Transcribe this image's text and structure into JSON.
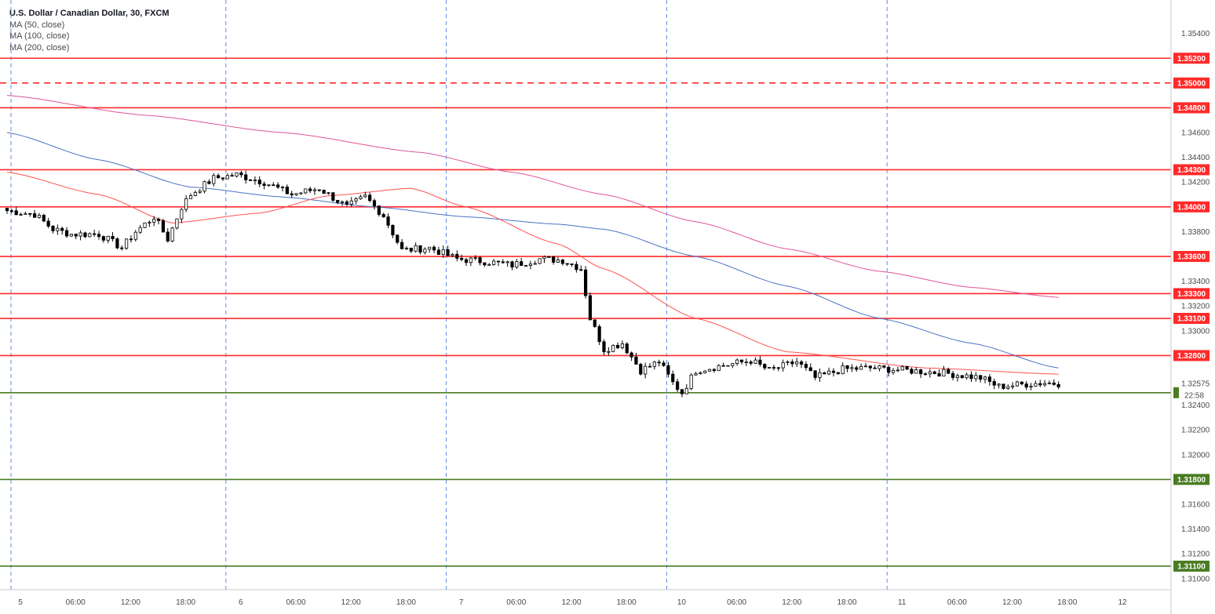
{
  "legend": {
    "title": "U.S. Dollar / Canadian Dollar, 30, FXCM",
    "ma50": "MA (50, close)",
    "ma100": "MA (100, close)",
    "ma200": "MA (200, close)"
  },
  "colors": {
    "resistance": "#ff2a2a",
    "support": "#4a7c23",
    "ma50": "#ff5252",
    "ma100": "#4a72c4",
    "ma200": "#e0559a",
    "session_line": "#5b8be0",
    "candle_up": "#ffffff",
    "candle_down": "#000000"
  },
  "chart_data": {
    "type": "candlestick",
    "symbol": "USDCAD",
    "timeframe": "30",
    "ylim": [
      1.3091,
      1.3567
    ],
    "y_ticks": [
      "1.35400",
      "1.34600",
      "1.34400",
      "1.34200",
      "1.33800",
      "1.33400",
      "1.33200",
      "1.33000",
      "1.32400",
      "1.32200",
      "1.32000",
      "1.31600",
      "1.31400",
      "1.31200",
      "1.31000"
    ],
    "x_ticks": [
      "5",
      "06:00",
      "12:00",
      "18:00",
      "6",
      "06:00",
      "12:00",
      "18:00",
      "7",
      "06:00",
      "12:00",
      "18:00",
      "10",
      "06:00",
      "12:00",
      "18:00",
      "11",
      "06:00",
      "12:00",
      "18:00",
      "12"
    ],
    "x_tick_bars": [
      0,
      12,
      24,
      36,
      48,
      60,
      72,
      84,
      96,
      108,
      120,
      132,
      144,
      156,
      168,
      180,
      192,
      204,
      216,
      228,
      240
    ],
    "session_breaks": [
      48,
      96,
      144,
      192
    ],
    "bar_count": 230,
    "resistance_levels": [
      {
        "value": 1.352,
        "label": "1.35200",
        "style": "solid"
      },
      {
        "value": 1.35,
        "label": "1.35000",
        "style": "dashed"
      },
      {
        "value": 1.348,
        "label": "1.34800",
        "style": "solid"
      },
      {
        "value": 1.343,
        "label": "1.34300",
        "style": "solid"
      },
      {
        "value": 1.34,
        "label": "1.34000",
        "style": "solid"
      },
      {
        "value": 1.336,
        "label": "1.33600",
        "style": "solid"
      },
      {
        "value": 1.333,
        "label": "1.33300",
        "style": "solid"
      },
      {
        "value": 1.331,
        "label": "1.33100",
        "style": "solid"
      },
      {
        "value": 1.328,
        "label": "1.32800",
        "style": "solid"
      }
    ],
    "support_levels": [
      {
        "value": 1.325,
        "label": "",
        "style": "solid"
      },
      {
        "value": 1.318,
        "label": "1.31800",
        "style": "solid"
      },
      {
        "value": 1.311,
        "label": "1.31100",
        "style": "solid"
      }
    ],
    "last_price": {
      "value": 1.32575,
      "label": "1.32575"
    },
    "countdown": "22:58",
    "close_anchors": [
      [
        0,
        1.3397
      ],
      [
        6,
        1.3394
      ],
      [
        10,
        1.3382
      ],
      [
        14,
        1.3378
      ],
      [
        20,
        1.3378
      ],
      [
        25,
        1.3367
      ],
      [
        28,
        1.338
      ],
      [
        32,
        1.3392
      ],
      [
        35,
        1.3374
      ],
      [
        38,
        1.34
      ],
      [
        40,
        1.341
      ],
      [
        45,
        1.3423
      ],
      [
        50,
        1.3426
      ],
      [
        56,
        1.342
      ],
      [
        62,
        1.341
      ],
      [
        68,
        1.3415
      ],
      [
        74,
        1.34
      ],
      [
        78,
        1.3408
      ],
      [
        82,
        1.3393
      ],
      [
        86,
        1.3365
      ],
      [
        92,
        1.3367
      ],
      [
        98,
        1.3358
      ],
      [
        104,
        1.3356
      ],
      [
        110,
        1.3353
      ],
      [
        116,
        1.3358
      ],
      [
        121,
        1.3357
      ],
      [
        124,
        1.3352
      ],
      [
        125,
        1.335
      ],
      [
        127,
        1.331
      ],
      [
        130,
        1.3285
      ],
      [
        134,
        1.329
      ],
      [
        138,
        1.3268
      ],
      [
        142,
        1.3275
      ],
      [
        145,
        1.3258
      ],
      [
        147,
        1.325
      ],
      [
        150,
        1.3268
      ],
      [
        156,
        1.3272
      ],
      [
        162,
        1.3276
      ],
      [
        166,
        1.3268
      ],
      [
        172,
        1.3275
      ],
      [
        176,
        1.3262
      ],
      [
        182,
        1.3269
      ],
      [
        188,
        1.327
      ],
      [
        196,
        1.3268
      ],
      [
        204,
        1.3266
      ],
      [
        212,
        1.3262
      ],
      [
        216,
        1.3255
      ],
      [
        222,
        1.3257
      ],
      [
        226,
        1.3258
      ],
      [
        229,
        1.32575
      ]
    ],
    "ma50_points": [
      [
        0,
        1.3428
      ],
      [
        20,
        1.341
      ],
      [
        36,
        1.3387
      ],
      [
        55,
        1.3395
      ],
      [
        70,
        1.3409
      ],
      [
        88,
        1.3415
      ],
      [
        100,
        1.34
      ],
      [
        120,
        1.337
      ],
      [
        130,
        1.335
      ],
      [
        150,
        1.331
      ],
      [
        170,
        1.3283
      ],
      [
        200,
        1.327
      ],
      [
        229,
        1.3265
      ]
    ],
    "ma100_points": [
      [
        0,
        1.346
      ],
      [
        20,
        1.3438
      ],
      [
        40,
        1.3416
      ],
      [
        60,
        1.3408
      ],
      [
        80,
        1.34
      ],
      [
        100,
        1.3392
      ],
      [
        120,
        1.3386
      ],
      [
        130,
        1.3382
      ],
      [
        150,
        1.336
      ],
      [
        170,
        1.3336
      ],
      [
        190,
        1.331
      ],
      [
        210,
        1.329
      ],
      [
        229,
        1.327
      ]
    ],
    "ma200_points": [
      [
        0,
        1.349
      ],
      [
        30,
        1.3474
      ],
      [
        60,
        1.346
      ],
      [
        90,
        1.3444
      ],
      [
        110,
        1.3428
      ],
      [
        130,
        1.341
      ],
      [
        150,
        1.3388
      ],
      [
        170,
        1.3366
      ],
      [
        190,
        1.3348
      ],
      [
        210,
        1.3335
      ],
      [
        229,
        1.3327
      ]
    ]
  }
}
